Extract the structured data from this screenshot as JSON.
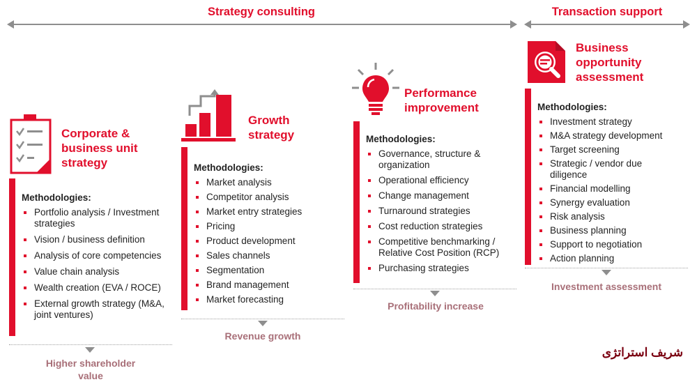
{
  "header": {
    "left_label": "Strategy consulting",
    "right_label": "Transaction support"
  },
  "colors": {
    "accent": "#e10f2c",
    "outcome": "#a86f78",
    "arrow": "#8e8e8e"
  },
  "columns": [
    {
      "title": "Corporate & business unit strategy",
      "icon": "clipboard-checklist-icon",
      "methodologies_label": "Methodologies:",
      "items": [
        "Portfolio analysis / Investment strategies",
        "Vision / business definition",
        "Analysis of core competencies",
        "Value chain analysis",
        "Wealth creation (EVA / ROCE)",
        "External growth strategy (M&A, joint ventures)"
      ],
      "outcome": "Higher shareholder value"
    },
    {
      "title": "Growth strategy",
      "icon": "growth-bar-chart-icon",
      "methodologies_label": "Methodologies:",
      "items": [
        "Market analysis",
        "Competitor analysis",
        "Market entry strategies",
        "Pricing",
        "Product development",
        "Sales channels",
        "Segmentation",
        "Brand management",
        "Market forecasting"
      ],
      "outcome": "Revenue growth"
    },
    {
      "title": "Performance improvement",
      "icon": "lightbulb-icon",
      "methodologies_label": "Methodologies:",
      "items": [
        "Governance, structure & organization",
        "Operational efficiency",
        "Change management",
        "Turnaround strategies",
        "Cost reduction strategies",
        "Competitive benchmarking / Relative Cost Position (RCP)",
        "Purchasing strategies"
      ],
      "outcome": "Profitability increase"
    },
    {
      "title": "Business opportunity assessment",
      "icon": "document-search-icon",
      "methodologies_label": "Methodologies:",
      "items": [
        "Investment strategy",
        "M&A strategy development",
        "Target screening",
        "Strategic / vendor due diligence",
        "Financial modelling",
        "Synergy evaluation",
        "Risk analysis",
        "Business planning",
        "Support to negotiation",
        "Action planning"
      ],
      "outcome": "Investment assessment"
    }
  ],
  "watermark": "شریف استراتژی"
}
